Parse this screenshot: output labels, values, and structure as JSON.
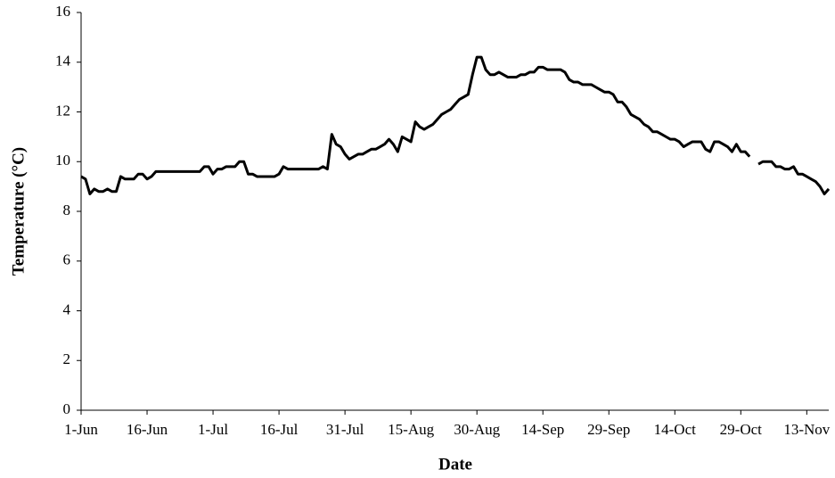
{
  "chart_data": {
    "type": "line",
    "xlabel": "Date",
    "ylabel": "Temperature (°C)",
    "color": "#000000",
    "categories": [
      "1-Jun",
      null,
      null,
      null,
      null,
      null,
      null,
      null,
      null,
      null,
      null,
      null,
      null,
      null,
      null,
      "16-Jun",
      null,
      null,
      null,
      null,
      null,
      null,
      null,
      null,
      null,
      null,
      null,
      null,
      null,
      null,
      "1-Jul",
      null,
      null,
      null,
      null,
      null,
      null,
      null,
      null,
      null,
      null,
      null,
      null,
      null,
      null,
      "16-Jul",
      null,
      null,
      null,
      null,
      null,
      null,
      null,
      null,
      null,
      null,
      null,
      null,
      null,
      null,
      "31-Jul",
      null,
      null,
      null,
      null,
      null,
      null,
      null,
      null,
      null,
      null,
      null,
      null,
      null,
      null,
      "15-Aug",
      null,
      null,
      null,
      null,
      null,
      null,
      null,
      null,
      null,
      null,
      null,
      null,
      null,
      null,
      "30-Aug",
      null,
      null,
      null,
      null,
      null,
      null,
      null,
      null,
      null,
      null,
      null,
      null,
      null,
      null,
      "14-Sep",
      null,
      null,
      null,
      null,
      null,
      null,
      null,
      null,
      null,
      null,
      null,
      null,
      null,
      null,
      "29-Sep",
      null,
      null,
      null,
      null,
      null,
      null,
      null,
      null,
      null,
      null,
      null,
      null,
      null,
      null,
      "14-Oct",
      null,
      null,
      null,
      null,
      null,
      null,
      null,
      null,
      null,
      null,
      null,
      null,
      null,
      null,
      "29-Oct",
      null,
      null,
      null,
      null,
      null,
      null,
      null,
      null,
      null,
      null,
      null,
      null,
      null,
      null,
      "13-Nov",
      null,
      null,
      null,
      null,
      null
    ],
    "values": [
      9.4,
      9.3,
      8.7,
      8.9,
      8.8,
      8.8,
      8.9,
      8.8,
      8.8,
      9.4,
      9.3,
      9.3,
      9.3,
      9.5,
      9.5,
      9.3,
      9.4,
      9.6,
      9.6,
      9.6,
      9.6,
      9.6,
      9.6,
      9.6,
      9.6,
      9.6,
      9.6,
      9.6,
      9.8,
      9.8,
      9.5,
      9.7,
      9.7,
      9.8,
      9.8,
      9.8,
      10.0,
      10.0,
      9.5,
      9.5,
      9.4,
      9.4,
      9.4,
      9.4,
      9.4,
      9.5,
      9.8,
      9.7,
      9.7,
      9.7,
      9.7,
      9.7,
      9.7,
      9.7,
      9.7,
      9.8,
      9.7,
      11.1,
      10.7,
      10.6,
      10.3,
      10.1,
      10.2,
      10.3,
      10.3,
      10.4,
      10.5,
      10.5,
      10.6,
      10.7,
      10.9,
      10.7,
      10.4,
      11.0,
      10.9,
      10.8,
      11.6,
      11.4,
      11.3,
      11.4,
      11.5,
      11.7,
      11.9,
      12.0,
      12.1,
      12.3,
      12.5,
      12.6,
      12.7,
      13.5,
      14.2,
      14.2,
      13.7,
      13.5,
      13.5,
      13.6,
      13.5,
      13.4,
      13.4,
      13.4,
      13.5,
      13.5,
      13.6,
      13.6,
      13.8,
      13.8,
      13.7,
      13.7,
      13.7,
      13.7,
      13.6,
      13.3,
      13.2,
      13.2,
      13.1,
      13.1,
      13.1,
      13.0,
      12.9,
      12.8,
      12.8,
      12.7,
      12.4,
      12.4,
      12.2,
      11.9,
      11.8,
      11.7,
      11.5,
      11.4,
      11.2,
      11.2,
      11.1,
      11.0,
      10.9,
      10.9,
      10.8,
      10.6,
      10.7,
      10.8,
      10.8,
      10.8,
      10.5,
      10.4,
      10.8,
      10.8,
      10.7,
      10.6,
      10.4,
      10.7,
      10.4,
      10.4,
      10.2,
      null,
      9.9,
      10.0,
      10.0,
      10.0,
      9.8,
      9.8,
      9.7,
      9.7,
      9.8,
      9.5,
      9.5,
      9.4,
      9.3,
      9.2,
      9.0,
      8.7,
      8.9
    ],
    "ylim": [
      0,
      16
    ],
    "yticks": [
      0,
      2,
      4,
      6,
      8,
      10,
      12,
      14,
      16
    ]
  }
}
